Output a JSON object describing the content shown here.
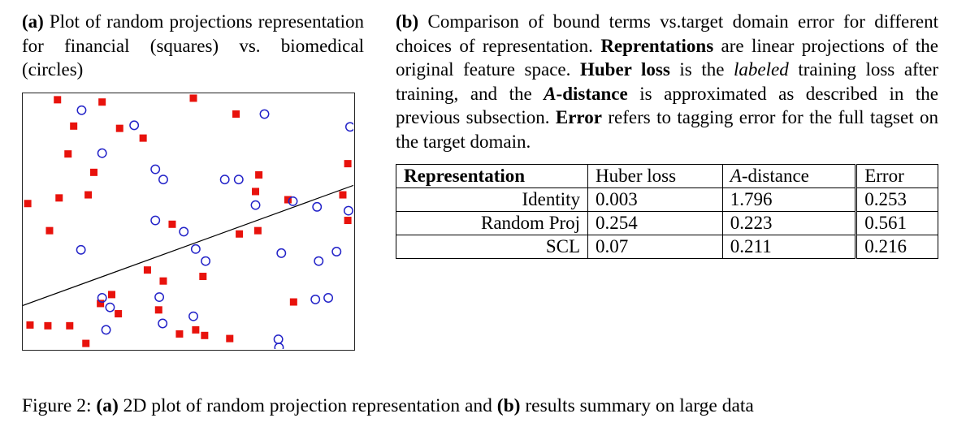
{
  "panel_a": {
    "caption_segments": [
      {
        "t": "(a) ",
        "b": true
      },
      {
        "t": "Plot of random projections representation for financial (squares) vs. biomedical (circles)"
      }
    ]
  },
  "chart_data": {
    "type": "scatter",
    "title": "Random projections representation: financial (squares) vs. biomedical (circles)",
    "xlabel": "",
    "ylabel": "",
    "xlim": [
      0,
      1
    ],
    "ylim": [
      0,
      1
    ],
    "grid": false,
    "tick_labels": false,
    "legend_position": "none",
    "separator_line": {
      "x1": 0,
      "y1": 0.17,
      "x2": 1,
      "y2": 0.64,
      "color": "#000000"
    },
    "series": [
      {
        "name": "financial",
        "marker": "square",
        "color": "#e8120c",
        "points": [
          [
            0.105,
            0.975
          ],
          [
            0.24,
            0.966
          ],
          [
            0.516,
            0.981
          ],
          [
            0.645,
            0.919
          ],
          [
            0.154,
            0.872
          ],
          [
            0.293,
            0.863
          ],
          [
            0.364,
            0.825
          ],
          [
            0.137,
            0.763
          ],
          [
            0.215,
            0.691
          ],
          [
            0.714,
            0.681
          ],
          [
            0.983,
            0.725
          ],
          [
            0.015,
            0.569
          ],
          [
            0.11,
            0.591
          ],
          [
            0.198,
            0.603
          ],
          [
            0.704,
            0.616
          ],
          [
            0.802,
            0.584
          ],
          [
            0.968,
            0.603
          ],
          [
            0.081,
            0.463
          ],
          [
            0.452,
            0.488
          ],
          [
            0.655,
            0.45
          ],
          [
            0.711,
            0.463
          ],
          [
            0.983,
            0.503
          ],
          [
            0.377,
            0.309
          ],
          [
            0.425,
            0.266
          ],
          [
            0.545,
            0.284
          ],
          [
            0.269,
            0.213
          ],
          [
            0.235,
            0.178
          ],
          [
            0.819,
            0.184
          ],
          [
            0.142,
            0.091
          ],
          [
            0.076,
            0.091
          ],
          [
            0.022,
            0.094
          ],
          [
            0.289,
            0.138
          ],
          [
            0.411,
            0.153
          ],
          [
            0.523,
            0.075
          ],
          [
            0.474,
            0.059
          ],
          [
            0.55,
            0.053
          ],
          [
            0.191,
            0.022
          ],
          [
            0.626,
            0.041
          ]
        ]
      },
      {
        "name": "biomedical",
        "marker": "circle",
        "color": "#2323c8",
        "points": [
          [
            0.178,
            0.934
          ],
          [
            0.731,
            0.919
          ],
          [
            0.99,
            0.869
          ],
          [
            0.337,
            0.875
          ],
          [
            0.24,
            0.766
          ],
          [
            0.401,
            0.703
          ],
          [
            0.425,
            0.663
          ],
          [
            0.611,
            0.663
          ],
          [
            0.653,
            0.663
          ],
          [
            0.704,
            0.563
          ],
          [
            0.817,
            0.578
          ],
          [
            0.89,
            0.556
          ],
          [
            0.985,
            0.541
          ],
          [
            0.176,
            0.388
          ],
          [
            0.401,
            0.503
          ],
          [
            0.523,
            0.391
          ],
          [
            0.553,
            0.344
          ],
          [
            0.487,
            0.459
          ],
          [
            0.782,
            0.375
          ],
          [
            0.895,
            0.344
          ],
          [
            0.949,
            0.381
          ],
          [
            0.24,
            0.2
          ],
          [
            0.264,
            0.163
          ],
          [
            0.413,
            0.203
          ],
          [
            0.516,
            0.128
          ],
          [
            0.885,
            0.194
          ],
          [
            0.924,
            0.2
          ],
          [
            0.252,
            0.075
          ],
          [
            0.423,
            0.1
          ],
          [
            0.773,
            0.038
          ],
          [
            0.775,
            0.006
          ]
        ]
      }
    ]
  },
  "panel_b": {
    "caption_segments": [
      {
        "t": "(b) ",
        "b": true
      },
      {
        "t": "Comparison of bound terms vs.target domain error for different choices of representation. "
      },
      {
        "t": "Reprentations",
        "b": true
      },
      {
        "t": " are linear projections of the original feature space. "
      },
      {
        "t": "Huber loss",
        "b": true
      },
      {
        "t": " is the "
      },
      {
        "t": "labeled",
        "i": true
      },
      {
        "t": " training loss after training, and the "
      },
      {
        "t": "A",
        "b": true,
        "i": true
      },
      {
        "t": "-distance",
        "b": true
      },
      {
        "t": " is approximated as described in the previous subsection. "
      },
      {
        "t": "Error",
        "b": true
      },
      {
        "t": " refers to tagging error for the full tagset on the target domain."
      }
    ]
  },
  "table": {
    "headers": [
      {
        "segments": [
          {
            "t": "Representation",
            "b": true
          }
        ]
      },
      {
        "segments": [
          {
            "t": "Huber loss"
          }
        ]
      },
      {
        "segments": [
          {
            "t": "A",
            "i": true
          },
          {
            "t": "-distance"
          }
        ]
      },
      {
        "segments": [
          {
            "t": "Error"
          }
        ]
      }
    ],
    "rows": [
      {
        "cells": [
          {
            "t": "Identity"
          },
          {
            "t": "0.003",
            "b": true
          },
          {
            "t": "1.796"
          },
          {
            "t": "0.253"
          }
        ]
      },
      {
        "cells": [
          {
            "t": "Random Proj"
          },
          {
            "t": "0.254"
          },
          {
            "t": "0.223"
          },
          {
            "t": "0.561"
          }
        ]
      },
      {
        "cells": [
          {
            "t": "SCL"
          },
          {
            "t": "0.07"
          },
          {
            "t": "0.211",
            "b": true
          },
          {
            "t": "0.216",
            "b": true
          }
        ]
      }
    ]
  },
  "figure": {
    "caption_segments": [
      {
        "t": "Figure 2: "
      },
      {
        "t": "(a)",
        "b": true
      },
      {
        "t": " 2D plot of random projection representation and "
      },
      {
        "t": "(b)",
        "b": true
      },
      {
        "t": " results summary on large data"
      }
    ]
  }
}
